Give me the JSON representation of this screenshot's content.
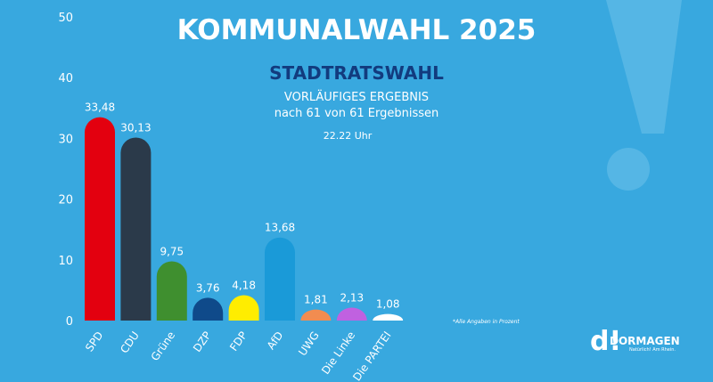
{
  "header": {
    "title": "KOMMUNALWAHL 2025",
    "subtitle": "STADTRATSWAHL",
    "status": "VORLÄUFIGES ERGEBNIS",
    "progress": "nach 61 von 61 Ergebnissen",
    "time": "22.22 Uhr"
  },
  "footnote": "*Alle Angaben in Prozent",
  "logo": {
    "mark": "d!",
    "name": "DORMAGEN",
    "tagline": "Natürlich! Am Rhein."
  },
  "colors": {
    "background": "#38a8df",
    "title_accent": "#123b7e"
  },
  "chart_data": {
    "type": "bar",
    "categories": [
      "SPD",
      "CDU",
      "Grüne",
      "DZP",
      "FDP",
      "AfD",
      "UWG",
      "Die Linke",
      "Die PARTEI"
    ],
    "values": [
      33.48,
      30.13,
      9.75,
      3.76,
      4.18,
      13.68,
      1.81,
      2.13,
      1.08
    ],
    "labels": [
      "33,48",
      "30,13",
      "9,75",
      "3,76",
      "4,18",
      "13,68",
      "1,81",
      "2,13",
      "1,08"
    ],
    "colors": [
      "#e3000f",
      "#2b3a4a",
      "#3f8f2f",
      "#0f4a8a",
      "#ffed00",
      "#1a9ad8",
      "#f28c50",
      "#c061e0",
      "#ffffff"
    ],
    "yticks": [
      0,
      10,
      20,
      30,
      40,
      50
    ],
    "ylim": [
      0,
      50
    ],
    "grid": false,
    "title": "STADTRATSWAHL",
    "xlabel": "",
    "ylabel": ""
  }
}
